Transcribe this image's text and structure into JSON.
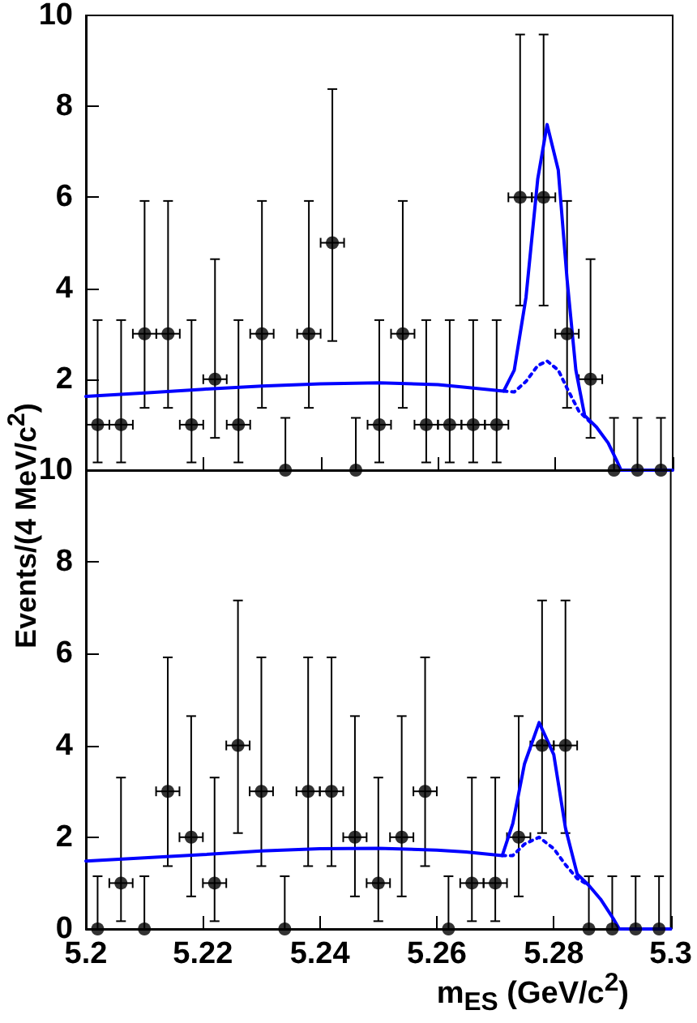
{
  "chart_data": [
    {
      "type": "scatter",
      "ylabel": "Events/(4 MeV/c$^{2}$)",
      "xlim": [
        5.2,
        5.3
      ],
      "xticks": [
        5.2,
        5.22,
        5.24,
        5.26,
        5.28,
        5.3
      ],
      "ylim": [
        0,
        10
      ],
      "yticks": [
        {
          "value": 0,
          "label": null
        },
        2,
        4,
        6,
        8,
        10
      ],
      "tick_labels": "y",
      "grid": false,
      "marker": "circle",
      "x": [
        5.202,
        5.206,
        5.21,
        5.214,
        5.218,
        5.222,
        5.226,
        5.23,
        5.234,
        5.238,
        5.242,
        5.246,
        5.25,
        5.254,
        5.258,
        5.262,
        5.266,
        5.27,
        5.274,
        5.278,
        5.282,
        5.286,
        5.29,
        5.294,
        5.298
      ],
      "series": [
        {
          "color": "#000000",
          "values": [
            1,
            1,
            3,
            3,
            1,
            2,
            1,
            3,
            0,
            3,
            5,
            0,
            1,
            3,
            1,
            1,
            1,
            1,
            6,
            6,
            3,
            2,
            0,
            0,
            0
          ],
          "errors": [
            [
              0.17,
              3.3
            ],
            [
              0.17,
              3.3
            ],
            [
              1.37,
              5.92
            ],
            [
              1.37,
              5.92
            ],
            [
              0.17,
              3.3
            ],
            [
              0.71,
              4.64
            ],
            [
              0.17,
              3.3
            ],
            [
              1.37,
              5.92
            ],
            [
              0,
              1.15
            ],
            [
              1.37,
              5.92
            ],
            [
              2.84,
              8.38
            ],
            [
              0,
              1.15
            ],
            [
              0.17,
              3.3
            ],
            [
              1.37,
              5.92
            ],
            [
              0.17,
              3.3
            ],
            [
              0.17,
              3.3
            ],
            [
              0.17,
              3.3
            ],
            [
              0.17,
              3.3
            ],
            [
              3.62,
              9.58
            ],
            [
              3.62,
              9.58
            ],
            [
              1.37,
              5.92
            ],
            [
              0.71,
              4.64
            ],
            [
              0,
              1.15
            ],
            [
              0,
              1.15
            ],
            [
              0,
              1.15
            ]
          ],
          "xerrors": [
            0.002,
            0.002,
            0.002,
            0.002,
            0.002,
            0.002,
            0.002,
            0.002,
            null,
            0.002,
            0.002,
            null,
            0.002,
            0.002,
            0.002,
            0.002,
            0.002,
            0.002,
            0.002,
            0.002,
            0.002,
            0.002,
            null,
            null,
            null
          ]
        },
        {
          "type": "line",
          "color": "#0000ff",
          "line_style": "solid",
          "marker": "none",
          "x": [
            5.2,
            5.21,
            5.22,
            5.23,
            5.24,
            5.25,
            5.26,
            5.265,
            5.2712,
            5.273,
            5.275,
            5.277,
            5.2786,
            5.2805,
            5.282,
            5.2835,
            5.285,
            5.287,
            5.289,
            5.2905,
            5.2912,
            5.3
          ],
          "values": [
            1.62,
            1.7,
            1.78,
            1.85,
            1.9,
            1.92,
            1.88,
            1.82,
            1.74,
            2.2,
            3.8,
            6.4,
            7.6,
            6.6,
            4.2,
            2.2,
            1.2,
            0.95,
            0.6,
            0.2,
            0,
            0
          ]
        },
        {
          "type": "line",
          "color": "#0000ff",
          "line_style": "dotted",
          "marker": "none",
          "x": [
            5.2712,
            5.273,
            5.275,
            5.277,
            5.2786,
            5.2805,
            5.282,
            5.284,
            5.286
          ],
          "values": [
            1.74,
            1.72,
            1.95,
            2.3,
            2.4,
            2.2,
            1.8,
            1.3,
            1.05
          ]
        }
      ]
    },
    {
      "type": "scatter",
      "xlabel": "m$_{ES}$ (GeV/c$^{2}$)",
      "xlim": [
        5.2,
        5.3
      ],
      "xticks": [
        5.2,
        5.22,
        5.24,
        5.26,
        5.28,
        5.3
      ],
      "ylim": [
        0,
        10
      ],
      "yticks": [
        0,
        2,
        4,
        6,
        8,
        10
      ],
      "grid": false,
      "marker": "circle",
      "x": [
        5.202,
        5.206,
        5.21,
        5.214,
        5.218,
        5.222,
        5.226,
        5.23,
        5.234,
        5.238,
        5.242,
        5.246,
        5.25,
        5.254,
        5.258,
        5.262,
        5.266,
        5.27,
        5.274,
        5.278,
        5.282,
        5.286,
        5.29,
        5.294,
        5.298
      ],
      "series": [
        {
          "color": "#000000",
          "values": [
            0,
            1,
            0,
            3,
            2,
            1,
            4,
            3,
            0,
            3,
            3,
            2,
            1,
            2,
            3,
            0,
            1,
            1,
            2,
            4,
            4,
            0,
            0,
            0,
            0
          ],
          "errors": [
            [
              0,
              1.15
            ],
            [
              0.17,
              3.3
            ],
            [
              0,
              1.15
            ],
            [
              1.37,
              5.92
            ],
            [
              0.71,
              4.64
            ],
            [
              0.17,
              3.3
            ],
            [
              2.09,
              7.16
            ],
            [
              1.37,
              5.92
            ],
            [
              0,
              1.15
            ],
            [
              1.37,
              5.92
            ],
            [
              1.37,
              5.92
            ],
            [
              0.71,
              4.64
            ],
            [
              0.17,
              3.3
            ],
            [
              0.71,
              4.64
            ],
            [
              1.37,
              5.92
            ],
            [
              0,
              1.15
            ],
            [
              0.17,
              3.3
            ],
            [
              0.17,
              3.3
            ],
            [
              0.71,
              4.64
            ],
            [
              2.09,
              7.16
            ],
            [
              2.09,
              7.16
            ],
            [
              0,
              1.15
            ],
            [
              0,
              1.15
            ],
            [
              0,
              1.15
            ],
            [
              0,
              1.15
            ]
          ],
          "xerrors": [
            null,
            0.002,
            null,
            0.002,
            0.002,
            0.002,
            0.002,
            0.002,
            null,
            0.002,
            0.002,
            0.002,
            0.002,
            0.002,
            0.002,
            null,
            0.002,
            0.002,
            0.002,
            0.002,
            0.002,
            null,
            null,
            null,
            null
          ]
        },
        {
          "type": "line",
          "color": "#0000ff",
          "line_style": "solid",
          "marker": "none",
          "x": [
            5.2,
            5.21,
            5.22,
            5.23,
            5.24,
            5.25,
            5.26,
            5.265,
            5.2712,
            5.273,
            5.275,
            5.2775,
            5.28,
            5.282,
            5.284,
            5.286,
            5.288,
            5.2903,
            5.2912,
            5.3
          ],
          "values": [
            1.48,
            1.55,
            1.62,
            1.7,
            1.75,
            1.76,
            1.72,
            1.68,
            1.6,
            2.3,
            3.6,
            4.5,
            3.8,
            2.2,
            1.2,
            0.95,
            0.65,
            0.2,
            0,
            0
          ]
        },
        {
          "type": "line",
          "color": "#0000ff",
          "line_style": "dotted",
          "marker": "none",
          "x": [
            5.2712,
            5.273,
            5.275,
            5.2775,
            5.28,
            5.282,
            5.284,
            5.286
          ],
          "values": [
            1.6,
            1.6,
            1.85,
            2.0,
            1.75,
            1.4,
            1.1,
            0.95
          ]
        }
      ]
    }
  ]
}
